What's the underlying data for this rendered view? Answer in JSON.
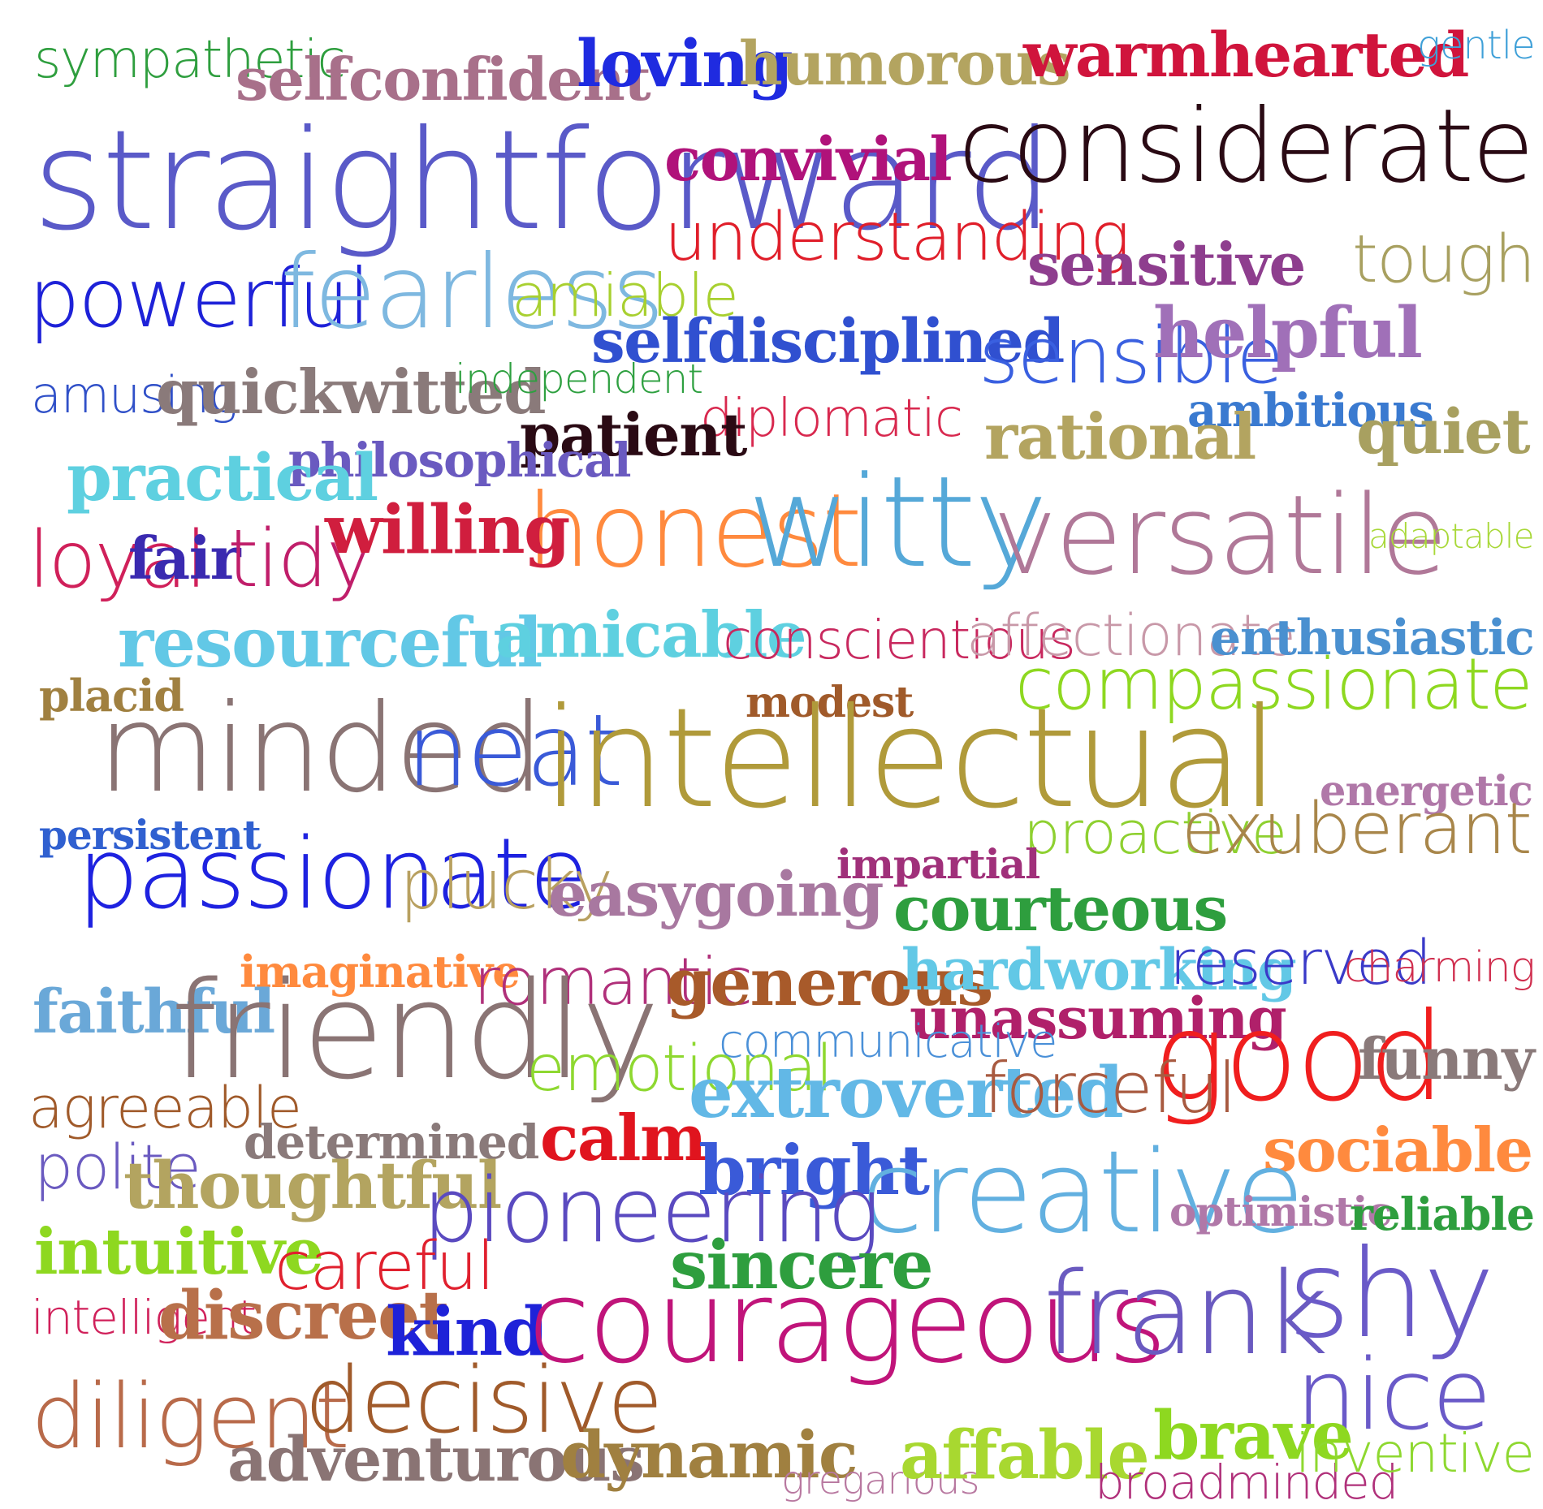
{
  "words": [
    {
      "text": "sympathetic",
      "color": "#2E9E3E",
      "style": "h"
    },
    {
      "text": "selfconfident",
      "color": "#A8708A",
      "style": "s"
    },
    {
      "text": "loving",
      "color": "#1F2BE0",
      "style": "s"
    },
    {
      "text": "humorous",
      "color": "#B3A460",
      "style": "s"
    },
    {
      "text": "warmhearted",
      "color": "#D0143C",
      "style": "s"
    },
    {
      "text": "gentle",
      "color": "#3FA0D8",
      "style": "h"
    },
    {
      "text": "straightforward",
      "color": "#5A5AC8",
      "style": "h"
    },
    {
      "text": "convivial",
      "color": "#B0127A",
      "style": "s"
    },
    {
      "text": "considerate",
      "color": "#2A0A14",
      "style": "h"
    },
    {
      "text": "understanding",
      "color": "#E01E2A",
      "style": "h"
    },
    {
      "text": "sensitive",
      "color": "#8E3E8E",
      "style": "s"
    },
    {
      "text": "powerful",
      "color": "#1E22D8",
      "style": "h"
    },
    {
      "text": "fearless",
      "color": "#7EB8E0",
      "style": "h"
    },
    {
      "text": "amiable",
      "color": "#A8D030",
      "style": "h"
    },
    {
      "text": "tough",
      "color": "#A8A060",
      "style": "h"
    },
    {
      "text": "selfdisciplined",
      "color": "#3050D0",
      "style": "s"
    },
    {
      "text": "sensible",
      "color": "#3A60E0",
      "style": "h"
    },
    {
      "text": "helpful",
      "color": "#A070B8",
      "style": "s"
    },
    {
      "text": "amusing",
      "color": "#3050C8",
      "style": "h"
    },
    {
      "text": "quickwitted",
      "color": "#8A7A7A",
      "style": "s"
    },
    {
      "text": "independent",
      "color": "#2EA040",
      "style": "h"
    },
    {
      "text": "ambitious",
      "color": "#3A7AD0",
      "style": "s"
    },
    {
      "text": "quiet",
      "color": "#A8A060",
      "style": "s"
    },
    {
      "text": "diplomatic",
      "color": "#D8284E",
      "style": "h"
    },
    {
      "text": "patient",
      "color": "#2A0A14",
      "style": "s"
    },
    {
      "text": "rational",
      "color": "#B3A460",
      "style": "s"
    },
    {
      "text": "philosophical",
      "color": "#6A5AC0",
      "style": "s"
    },
    {
      "text": "practical",
      "color": "#5ED0E0",
      "style": "s"
    },
    {
      "text": "honest",
      "color": "#FF8A3E",
      "style": "h"
    },
    {
      "text": "witty",
      "color": "#55A8D8",
      "style": "h"
    },
    {
      "text": "versatile",
      "color": "#B07898",
      "style": "h"
    },
    {
      "text": "adaptable",
      "color": "#A8D838",
      "style": "h"
    },
    {
      "text": "loyal",
      "color": "#D0205A",
      "style": "h"
    },
    {
      "text": "fair",
      "color": "#3A2AB0",
      "style": "s"
    },
    {
      "text": "tidy",
      "color": "#C01E6A",
      "style": "h"
    },
    {
      "text": "willing",
      "color": "#D01E3E",
      "style": "s"
    },
    {
      "text": "resourceful",
      "color": "#62C8E6",
      "style": "s"
    },
    {
      "text": "amicable",
      "color": "#5ED0E0",
      "style": "s"
    },
    {
      "text": "conscientious",
      "color": "#C8285E",
      "style": "h"
    },
    {
      "text": "affectionate",
      "color": "#C898A8",
      "style": "h"
    },
    {
      "text": "enthusiastic",
      "color": "#4A90D0",
      "style": "s"
    },
    {
      "text": "placid",
      "color": "#A08040",
      "style": "s"
    },
    {
      "text": "modest",
      "color": "#A05A2A",
      "style": "s"
    },
    {
      "text": "compassionate",
      "color": "#8ED820",
      "style": "h"
    },
    {
      "text": "minded",
      "color": "#8A7474",
      "style": "h"
    },
    {
      "text": "neat",
      "color": "#3A5AD8",
      "style": "h"
    },
    {
      "text": "intellectual",
      "color": "#B09A3A",
      "style": "h"
    },
    {
      "text": "energetic",
      "color": "#B078A8",
      "style": "s"
    },
    {
      "text": "persistent",
      "color": "#3060D0",
      "style": "s"
    },
    {
      "text": "proactive",
      "color": "#8ED030",
      "style": "h"
    },
    {
      "text": "exuberant",
      "color": "#A8864A",
      "style": "h"
    },
    {
      "text": "impartial",
      "color": "#A0307A",
      "style": "s"
    },
    {
      "text": "passionate",
      "color": "#1E22E0",
      "style": "h"
    },
    {
      "text": "plucky",
      "color": "#B8A060",
      "style": "h"
    },
    {
      "text": "easygoing",
      "color": "#A878A0",
      "style": "s"
    },
    {
      "text": "courteous",
      "color": "#2E9E3E",
      "style": "s"
    },
    {
      "text": "imaginative",
      "color": "#FF8A3E",
      "style": "s"
    },
    {
      "text": "romantic",
      "color": "#B0307A",
      "style": "h"
    },
    {
      "text": "generous",
      "color": "#A85A2A",
      "style": "s"
    },
    {
      "text": "hardworking",
      "color": "#62C8E6",
      "style": "s"
    },
    {
      "text": "reserved",
      "color": "#3A3AC8",
      "style": "h"
    },
    {
      "text": "charming",
      "color": "#D02E4E",
      "style": "h"
    },
    {
      "text": "faithful",
      "color": "#6AA8D8",
      "style": "s"
    },
    {
      "text": "friendly",
      "color": "#8A7474",
      "style": "h"
    },
    {
      "text": "unassuming",
      "color": "#B0206A",
      "style": "s"
    },
    {
      "text": "communicative",
      "color": "#4A90D8",
      "style": "h"
    },
    {
      "text": "good",
      "color": "#F01E1E",
      "style": "h"
    },
    {
      "text": "emotional",
      "color": "#8ED830",
      "style": "h"
    },
    {
      "text": "funny",
      "color": "#8A7A7A",
      "style": "s"
    },
    {
      "text": "agreeable",
      "color": "#A05A2A",
      "style": "h"
    },
    {
      "text": "extroverted",
      "color": "#62B8E6",
      "style": "s"
    },
    {
      "text": "forceful",
      "color": "#A85A40",
      "style": "h"
    },
    {
      "text": "determined",
      "color": "#8A7A7A",
      "style": "s"
    },
    {
      "text": "calm",
      "color": "#E0141E",
      "style": "s"
    },
    {
      "text": "sociable",
      "color": "#FF8A3E",
      "style": "s"
    },
    {
      "text": "polite",
      "color": "#6A5AC0",
      "style": "h"
    },
    {
      "text": "thoughtful",
      "color": "#B3A460",
      "style": "s"
    },
    {
      "text": "bright",
      "color": "#3A5AD8",
      "style": "s"
    },
    {
      "text": "creative",
      "color": "#62B0E0",
      "style": "h"
    },
    {
      "text": "optimistic",
      "color": "#B078A8",
      "style": "s"
    },
    {
      "text": "reliable",
      "color": "#2E9E3E",
      "style": "s"
    },
    {
      "text": "pioneering",
      "color": "#5A4AC0",
      "style": "h"
    },
    {
      "text": "intuitive",
      "color": "#8ED820",
      "style": "s"
    },
    {
      "text": "careful",
      "color": "#E0202E",
      "style": "h"
    },
    {
      "text": "sincere",
      "color": "#2E9E3E",
      "style": "s"
    },
    {
      "text": "intelligent",
      "color": "#D0205A",
      "style": "h"
    },
    {
      "text": "discreet",
      "color": "#B8704A",
      "style": "s"
    },
    {
      "text": "kind",
      "color": "#1E22D8",
      "style": "s"
    },
    {
      "text": "courageous",
      "color": "#C0147A",
      "style": "h"
    },
    {
      "text": "frank",
      "color": "#6A5AC0",
      "style": "h"
    },
    {
      "text": "shy",
      "color": "#6A5AC8",
      "style": "h"
    },
    {
      "text": "nice",
      "color": "#6A5AC8",
      "style": "h"
    },
    {
      "text": "diligent",
      "color": "#B86A4A",
      "style": "h"
    },
    {
      "text": "decisive",
      "color": "#A05A2A",
      "style": "h"
    },
    {
      "text": "adventurous",
      "color": "#8A7474",
      "style": "s"
    },
    {
      "text": "dynamic",
      "color": "#A08040",
      "style": "s"
    },
    {
      "text": "gregarious",
      "color": "#B878A0",
      "style": "h"
    },
    {
      "text": "affable",
      "color": "#A8D830",
      "style": "s"
    },
    {
      "text": "brave",
      "color": "#8ED820",
      "style": "s"
    },
    {
      "text": "broadminded",
      "color": "#B0307A",
      "style": "h"
    },
    {
      "text": "inventive",
      "color": "#8ED830",
      "style": "h"
    }
  ]
}
